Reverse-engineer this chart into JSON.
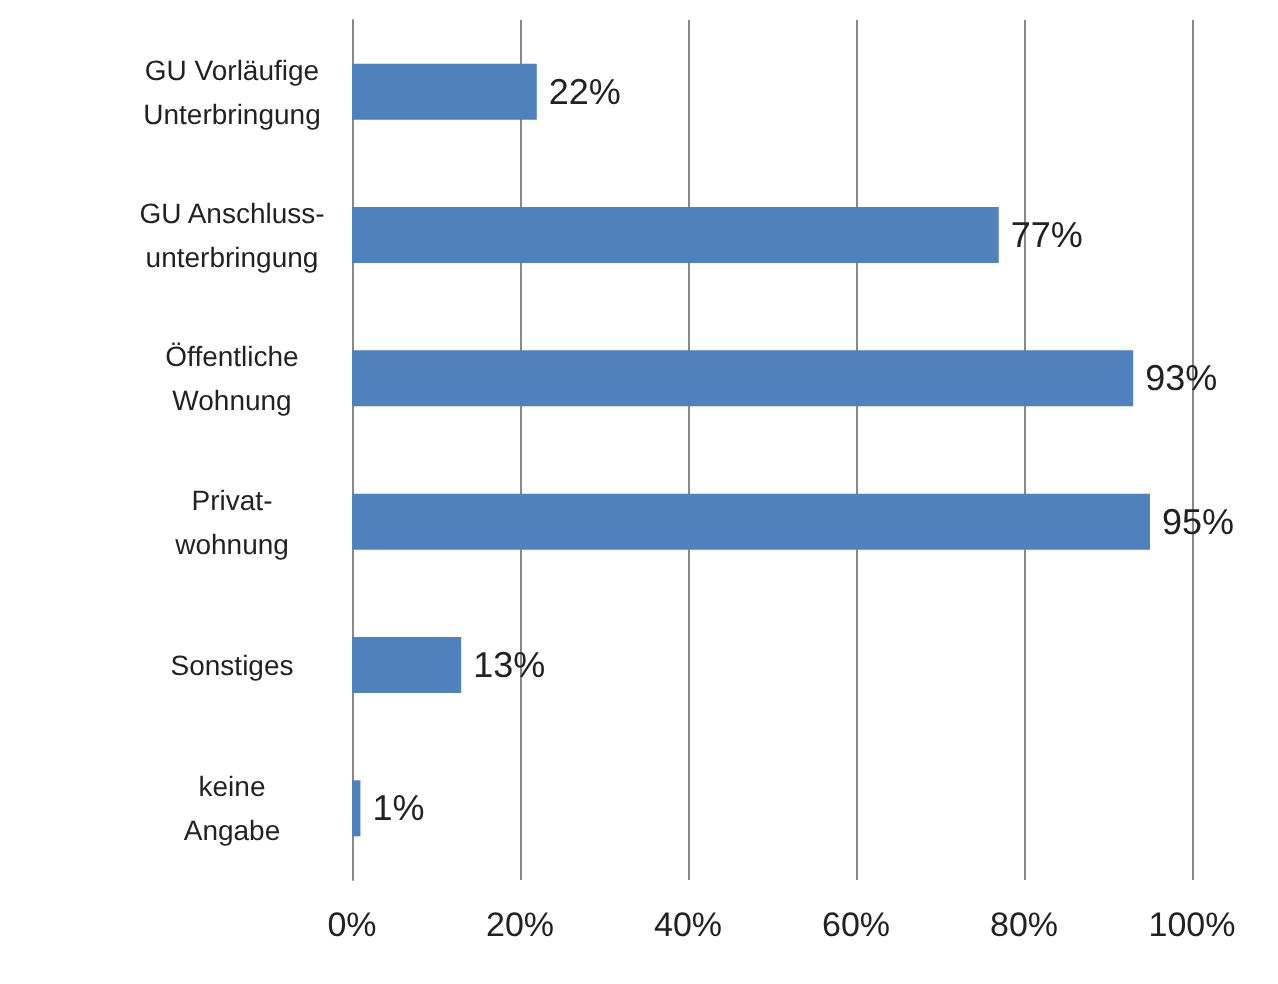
{
  "chart_data": {
    "type": "bar",
    "orientation": "horizontal",
    "categories": [
      "GU Vorläufige\nUnterbringung",
      "GU Anschluss-\nunterbringung",
      "Öffentliche\nWohnung",
      "Privat-\nwohnung",
      "Sonstiges",
      "keine\nAngabe"
    ],
    "values": [
      22,
      77,
      93,
      95,
      13,
      1
    ],
    "value_labels": [
      "22%",
      "77%",
      "93%",
      "95%",
      "13%",
      "1%"
    ],
    "color": "#4f81bd",
    "xlim": [
      0,
      100
    ],
    "xticks": [
      {
        "value": 0,
        "label": "0%"
      },
      {
        "value": 20,
        "label": "20%"
      },
      {
        "value": 40,
        "label": "40%"
      },
      {
        "value": 60,
        "label": "60%"
      },
      {
        "value": 80,
        "label": "80%"
      },
      {
        "value": 100,
        "label": "100%"
      }
    ],
    "grid": "x"
  }
}
